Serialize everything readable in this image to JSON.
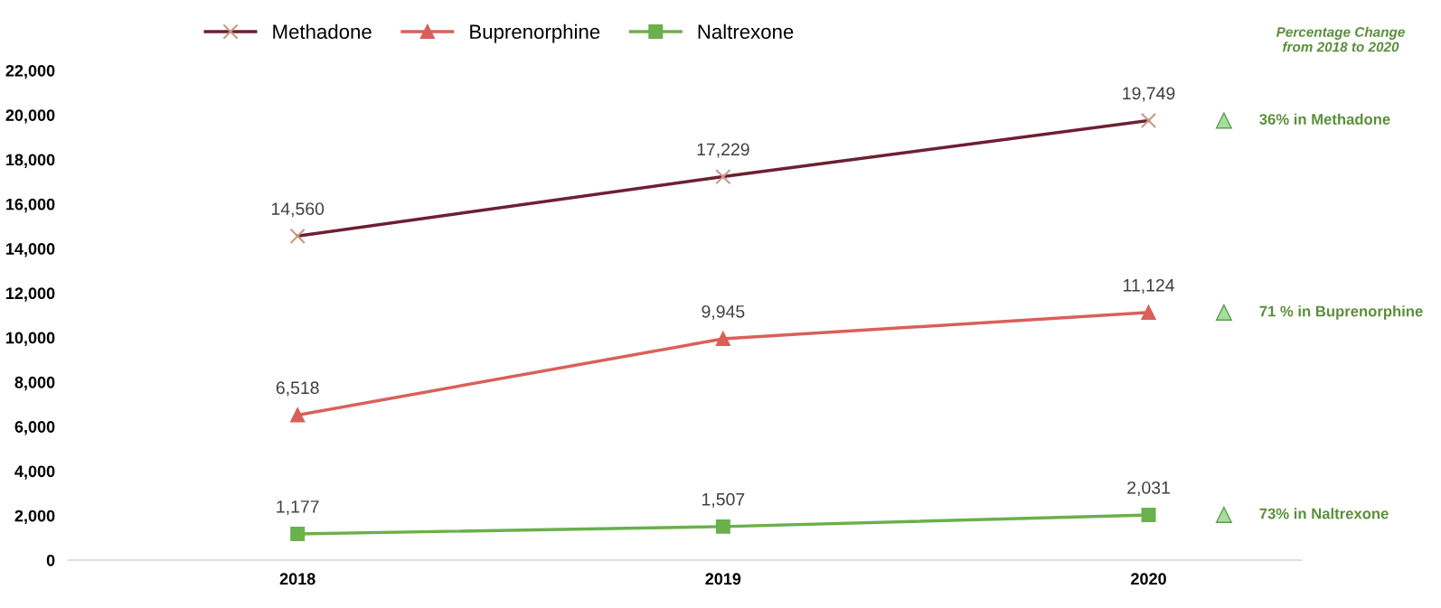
{
  "chart_data": {
    "type": "line",
    "categories": [
      "2018",
      "2019",
      "2020"
    ],
    "series": [
      {
        "name": "Methadone",
        "color": "#6e1f33",
        "marker": "cross",
        "values": [
          14560,
          17229,
          19749
        ],
        "value_labels": [
          "14,560",
          "17,229",
          "19,749"
        ]
      },
      {
        "name": "Buprenorphine",
        "color": "#d9605a",
        "marker": "triangle",
        "values": [
          6518,
          9945,
          11124
        ],
        "value_labels": [
          "6,518",
          "9,945",
          "11,124"
        ]
      },
      {
        "name": "Naltrexone",
        "color": "#6ab04c",
        "marker": "square",
        "values": [
          1177,
          1507,
          2031
        ],
        "value_labels": [
          "1,177",
          "1,507",
          "2,031"
        ]
      }
    ],
    "ylim": [
      0,
      22000
    ],
    "yticks": [
      {
        "value": 0,
        "label": "0"
      },
      {
        "value": 2000,
        "label": "2,000"
      },
      {
        "value": 4000,
        "label": "4,000"
      },
      {
        "value": 6000,
        "label": "6,000"
      },
      {
        "value": 8000,
        "label": "8,000"
      },
      {
        "value": 10000,
        "label": "10,000"
      },
      {
        "value": 12000,
        "label": "12,000"
      },
      {
        "value": 14000,
        "label": "14,000"
      },
      {
        "value": 16000,
        "label": "16,000"
      },
      {
        "value": 18000,
        "label": "18,000"
      },
      {
        "value": 20000,
        "label": "20,000"
      },
      {
        "value": 22000,
        "label": "22,000"
      }
    ],
    "legend": "top",
    "grid": false,
    "annotations": [
      "Percentage Change\nfrom 2018 to 2020",
      "36% in Methadone",
      "71 % in Buprenorphine",
      "73% in Naltrexone"
    ]
  }
}
